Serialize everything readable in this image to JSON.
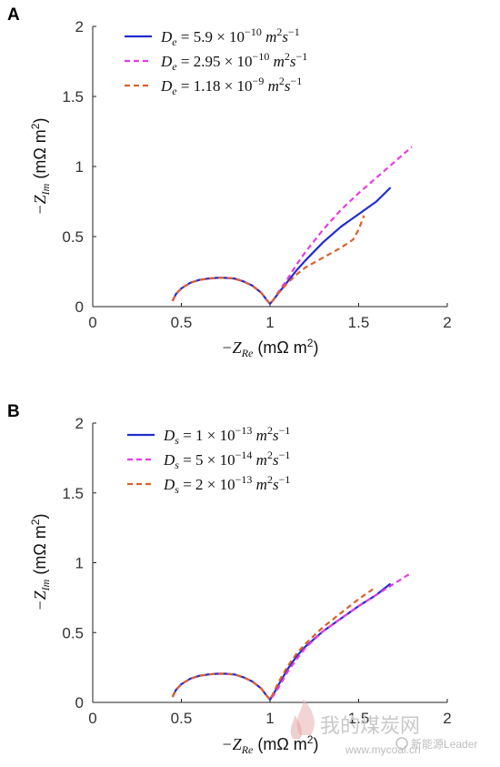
{
  "chart_data": [
    {
      "panel": "A",
      "type": "line",
      "xlabel": {
        "prefix": "−Z",
        "sub": "Re",
        "unit": "(mΩ m",
        "sup": "2",
        "close": ")"
      },
      "ylabel": {
        "prefix": "−Z",
        "sub": "Im",
        "unit": "(mΩ m",
        "sup": "2",
        "close": ")"
      },
      "xlim": [
        0,
        2
      ],
      "ylim": [
        0,
        2
      ],
      "xticks": [
        "0",
        "0.5",
        "1",
        "1.5",
        "2"
      ],
      "yticks": [
        "0",
        "0.5",
        "1",
        "1.5",
        "2"
      ],
      "legend_position": "top-left",
      "series": [
        {
          "name": "D_e = 5.9 × 10^-10 m²s^-1",
          "label": {
            "var": "D",
            "sub": "e",
            "eq": " = 5.9 × 10",
            "exp": "−10",
            "unit": " m",
            "unitsup": "2",
            "s": "s",
            "ssup": "−1"
          },
          "color": "#1f2ecf",
          "dash": "solid",
          "x": [
            0.45,
            0.47,
            0.5,
            0.55,
            0.6,
            0.65,
            0.7,
            0.75,
            0.8,
            0.85,
            0.9,
            0.95,
            0.98,
            1.0,
            1.02,
            1.05,
            1.1,
            1.15,
            1.2,
            1.3,
            1.4,
            1.5,
            1.6,
            1.68
          ],
          "y": [
            0.04,
            0.09,
            0.13,
            0.17,
            0.19,
            0.2,
            0.205,
            0.205,
            0.2,
            0.18,
            0.15,
            0.1,
            0.05,
            0.02,
            0.05,
            0.1,
            0.18,
            0.26,
            0.33,
            0.46,
            0.57,
            0.66,
            0.75,
            0.85
          ]
        },
        {
          "name": "D_e = 2.95 × 10^-10 m²s^-1",
          "label": {
            "var": "D",
            "sub": "e",
            "eq": " = 2.95 × 10",
            "exp": "−10",
            "unit": " m",
            "unitsup": "2",
            "s": "s",
            "ssup": "−1"
          },
          "color": "#e63be6",
          "dash": "dashed",
          "x": [
            0.45,
            0.47,
            0.5,
            0.55,
            0.6,
            0.65,
            0.7,
            0.75,
            0.8,
            0.85,
            0.9,
            0.95,
            0.98,
            1.0,
            1.02,
            1.05,
            1.1,
            1.15,
            1.2,
            1.3,
            1.4,
            1.5,
            1.6,
            1.7,
            1.8
          ],
          "y": [
            0.04,
            0.09,
            0.13,
            0.17,
            0.19,
            0.2,
            0.205,
            0.205,
            0.2,
            0.18,
            0.15,
            0.1,
            0.05,
            0.02,
            0.05,
            0.11,
            0.2,
            0.3,
            0.39,
            0.55,
            0.69,
            0.81,
            0.92,
            1.03,
            1.14
          ]
        },
        {
          "name": "D_e = 1.18 × 10^-9 m²s^-1",
          "label": {
            "var": "D",
            "sub": "e",
            "eq": " = 1.18 × 10",
            "exp": "−9",
            "unit": " m",
            "unitsup": "2",
            "s": "s",
            "ssup": "−1"
          },
          "color": "#d9622b",
          "dash": "dashed",
          "x": [
            0.45,
            0.47,
            0.5,
            0.55,
            0.6,
            0.65,
            0.7,
            0.75,
            0.8,
            0.85,
            0.9,
            0.95,
            0.98,
            1.0,
            1.02,
            1.05,
            1.1,
            1.15,
            1.2,
            1.3,
            1.4,
            1.47,
            1.5,
            1.53
          ],
          "y": [
            0.04,
            0.09,
            0.13,
            0.17,
            0.19,
            0.2,
            0.205,
            0.205,
            0.2,
            0.18,
            0.15,
            0.1,
            0.05,
            0.02,
            0.05,
            0.1,
            0.17,
            0.23,
            0.28,
            0.35,
            0.42,
            0.48,
            0.55,
            0.65
          ]
        }
      ]
    },
    {
      "panel": "B",
      "type": "line",
      "xlabel": {
        "prefix": "−Z",
        "sub": "Re",
        "unit": "(mΩ m",
        "sup": "2",
        "close": ")"
      },
      "ylabel": {
        "prefix": "−Z",
        "sub": "Im",
        "unit": "(mΩ m",
        "sup": "2",
        "close": ")"
      },
      "xlim": [
        0,
        2
      ],
      "ylim": [
        0,
        2
      ],
      "xticks": [
        "0",
        "0.5",
        "1",
        "1.5",
        "2"
      ],
      "yticks": [
        "0",
        "0.5",
        "1",
        "1.5",
        "2"
      ],
      "legend_position": "top-left",
      "series": [
        {
          "name": "D_s = 1 × 10^-13 m²s^-1",
          "label": {
            "var": "D",
            "sub": "s",
            "eq": " = 1 × 10",
            "exp": "−13",
            "unit": " m",
            "unitsup": "2",
            "s": "s",
            "ssup": "−1"
          },
          "color": "#1f2ecf",
          "dash": "solid",
          "x": [
            0.45,
            0.47,
            0.5,
            0.55,
            0.6,
            0.65,
            0.7,
            0.75,
            0.8,
            0.85,
            0.9,
            0.95,
            0.98,
            1.0,
            1.02,
            1.05,
            1.1,
            1.15,
            1.2,
            1.3,
            1.4,
            1.5,
            1.6,
            1.68
          ],
          "y": [
            0.04,
            0.09,
            0.13,
            0.17,
            0.19,
            0.2,
            0.205,
            0.205,
            0.2,
            0.18,
            0.15,
            0.1,
            0.05,
            0.02,
            0.06,
            0.13,
            0.24,
            0.33,
            0.4,
            0.51,
            0.6,
            0.69,
            0.77,
            0.85
          ]
        },
        {
          "name": "D_s = 5 × 10^-14 m²s^-1",
          "label": {
            "var": "D",
            "sub": "s",
            "eq": " = 5 × 10",
            "exp": "−14",
            "unit": " m",
            "unitsup": "2",
            "s": "s",
            "ssup": "−1"
          },
          "color": "#e63be6",
          "dash": "dashed",
          "x": [
            0.45,
            0.47,
            0.5,
            0.55,
            0.6,
            0.65,
            0.7,
            0.75,
            0.8,
            0.85,
            0.9,
            0.95,
            0.98,
            1.0,
            1.02,
            1.05,
            1.1,
            1.15,
            1.2,
            1.3,
            1.4,
            1.5,
            1.6,
            1.7,
            1.8
          ],
          "y": [
            0.04,
            0.09,
            0.13,
            0.17,
            0.19,
            0.2,
            0.205,
            0.205,
            0.2,
            0.18,
            0.15,
            0.1,
            0.05,
            0.02,
            0.05,
            0.11,
            0.22,
            0.31,
            0.39,
            0.51,
            0.6,
            0.69,
            0.77,
            0.85,
            0.93
          ]
        },
        {
          "name": "D_s = 2 × 10^-13 m²s^-1",
          "label": {
            "var": "D",
            "sub": "s",
            "eq": " = 2 × 10",
            "exp": "−13",
            "unit": " m",
            "unitsup": "2",
            "s": "s",
            "ssup": "−1"
          },
          "color": "#d9622b",
          "dash": "dashed",
          "x": [
            0.45,
            0.47,
            0.5,
            0.55,
            0.6,
            0.65,
            0.7,
            0.75,
            0.8,
            0.85,
            0.9,
            0.95,
            0.98,
            1.0,
            1.02,
            1.05,
            1.1,
            1.15,
            1.2,
            1.3,
            1.4,
            1.5,
            1.58
          ],
          "y": [
            0.04,
            0.09,
            0.13,
            0.17,
            0.19,
            0.2,
            0.205,
            0.205,
            0.2,
            0.18,
            0.15,
            0.1,
            0.05,
            0.02,
            0.07,
            0.15,
            0.26,
            0.35,
            0.42,
            0.54,
            0.64,
            0.74,
            0.81
          ]
        }
      ]
    }
  ],
  "watermark": {
    "text": "我的煤炭网",
    "url": "www.mycoal.cn",
    "badge": "新能源Leader"
  }
}
